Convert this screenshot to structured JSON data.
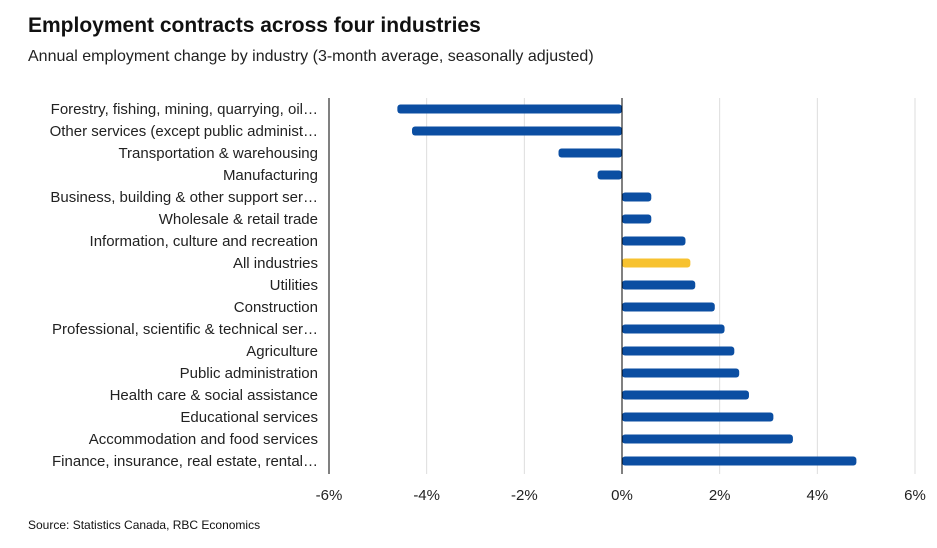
{
  "header": {
    "title": "Employment contracts across four industries",
    "subtitle": "Annual employment change by industry (3-month average, seasonally adjusted)"
  },
  "footer": {
    "source": "Source: Statistics Canada, RBC Economics"
  },
  "colors": {
    "bar": "#0b4ea2",
    "highlight": "#f7c230",
    "grid": "#dddddd",
    "axis": "#000000"
  },
  "chart_data": {
    "type": "bar",
    "orientation": "horizontal",
    "categories": [
      "Forestry, fishing, mining, quarrying, oil…",
      "Other services (except public administ…",
      "Transportation & warehousing",
      "Manufacturing",
      "Business, building & other support ser…",
      "Wholesale & retail trade",
      "Information, culture and recreation",
      "All industries",
      "Utilities",
      "Construction",
      "Professional, scientific & technical ser…",
      "Agriculture",
      "Public administration",
      "Health care & social assistance",
      "Educational services",
      "Accommodation and food services",
      "Finance, insurance, real estate, rental…"
    ],
    "values": [
      -4.6,
      -4.3,
      -1.3,
      -0.5,
      0.6,
      0.6,
      1.3,
      1.4,
      1.5,
      1.9,
      2.1,
      2.3,
      2.4,
      2.6,
      3.1,
      3.5,
      4.8
    ],
    "highlight_category": "All industries",
    "xlim": [
      -6,
      6
    ],
    "xticks": [
      -6,
      -4,
      -2,
      0,
      2,
      4,
      6
    ],
    "xtick_labels": [
      "-6%",
      "-4%",
      "-2%",
      "0%",
      "2%",
      "4%",
      "6%"
    ],
    "grid": true
  }
}
